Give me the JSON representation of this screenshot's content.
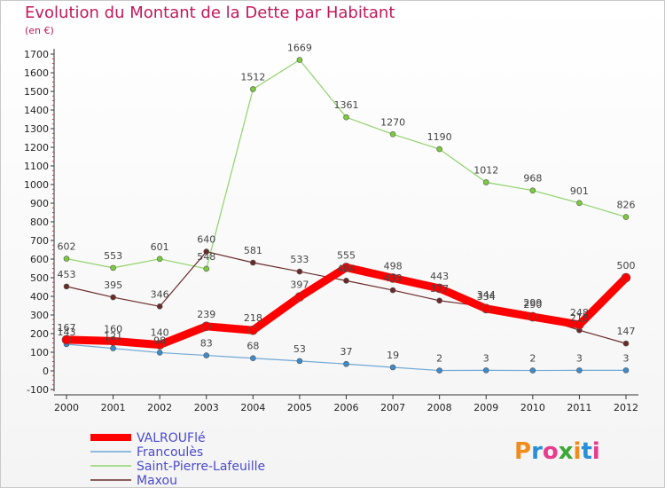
{
  "header": {
    "title": "Evolution du Montant de la Dette par Habitant",
    "subtitle": "(en €)"
  },
  "logo": {
    "text": "Proxiti",
    "colors": [
      "#f08c1c",
      "#2a8fd8",
      "#e93c8c",
      "#3aa935",
      "#f08c1c",
      "#2a8fd8",
      "#e93c8c"
    ]
  },
  "chart_data": {
    "type": "line",
    "title": "Evolution du Montant de la Dette par Habitant",
    "subtitle": "(en €)",
    "xlabel": "",
    "ylabel": "",
    "x": [
      "2000",
      "2001",
      "2002",
      "2003",
      "2004",
      "2005",
      "2006",
      "2007",
      "2008",
      "2009",
      "2010",
      "2011",
      "2012"
    ],
    "ylim": [
      -100,
      1700
    ],
    "yticks": [
      -100,
      0,
      100,
      200,
      300,
      400,
      500,
      600,
      700,
      800,
      900,
      1000,
      1100,
      1200,
      1300,
      1400,
      1500,
      1600,
      1700
    ],
    "grid": false,
    "legend_position": "bottom-left",
    "series": [
      {
        "name": "Saint-Pierre-Lafeuille",
        "color": "#8fd36a",
        "marker": "#7acc3a",
        "width": 1.2,
        "values": [
          602,
          553,
          601,
          548,
          1512,
          1669,
          1361,
          1270,
          1190,
          1012,
          968,
          901,
          826
        ]
      },
      {
        "name": "Maxou",
        "color": "#6b2a2a",
        "marker": "#6b2a2a",
        "width": 1.2,
        "values": [
          453,
          395,
          346,
          640,
          581,
          533,
          484,
          433,
          377,
          344,
          299,
          218,
          147
        ]
      },
      {
        "name": "Francoulès",
        "color": "#6fa8d6",
        "marker": "#3f8ac9",
        "width": 1.2,
        "values": [
          143,
          121,
          98,
          83,
          68,
          53,
          37,
          19,
          2,
          3,
          2,
          3,
          3
        ]
      },
      {
        "name": "VALROUFlé",
        "color": "#ff0000",
        "marker": "#ff0000",
        "width": 9,
        "values": [
          167,
          160,
          140,
          239,
          218,
          397,
          555,
          498,
          443,
          334,
          290,
          248,
          500
        ]
      }
    ]
  }
}
